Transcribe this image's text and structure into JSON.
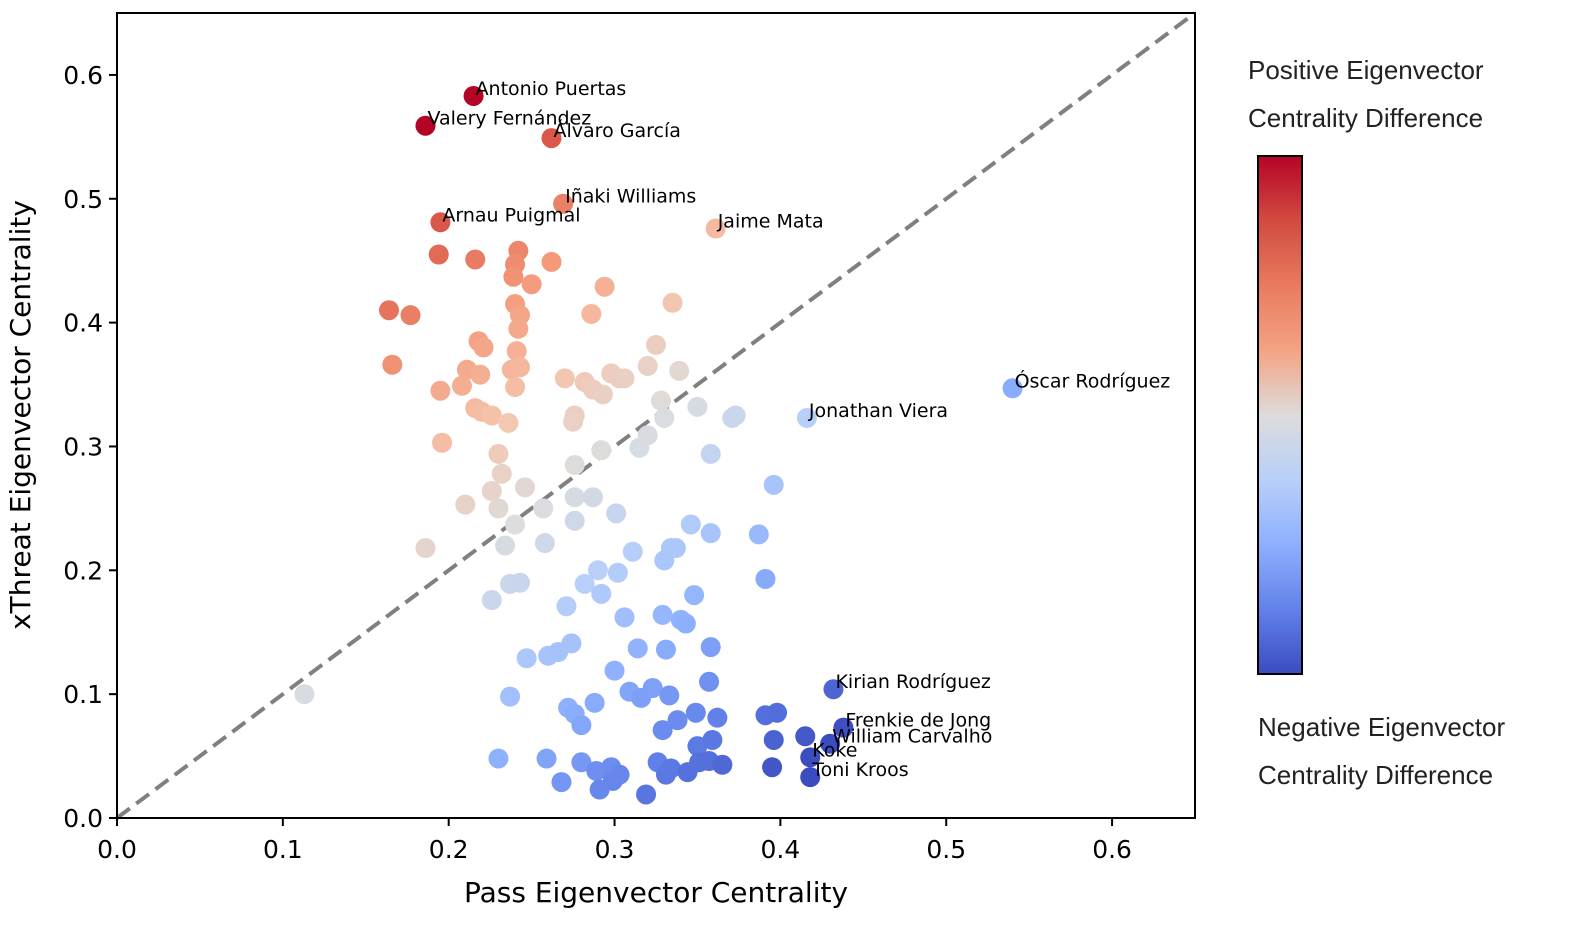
{
  "chart_data": {
    "type": "scatter",
    "xlabel": "Pass Eigenvector Centrality",
    "ylabel": "xThreat Eigenvector Centrality",
    "xlim": [
      0.0,
      0.65
    ],
    "ylim": [
      0.0,
      0.65
    ],
    "xticks": [
      "0.0",
      "0.1",
      "0.2",
      "0.3",
      "0.4",
      "0.5",
      "0.6"
    ],
    "yticks": [
      "0.0",
      "0.1",
      "0.2",
      "0.3",
      "0.4",
      "0.5",
      "0.6"
    ],
    "reference_line": "y = x, dashed gray",
    "colormap": "coolwarm",
    "colorbar": {
      "top_label": [
        "Positive Eigenvector",
        "Centrality Difference"
      ],
      "bottom_label": [
        "Negative Eigenvector",
        "Centrality Difference"
      ]
    },
    "labeled_points": [
      {
        "name": "Antonio Puertas",
        "x": 0.215,
        "y": 0.583
      },
      {
        "name": "Valery Fernández",
        "x": 0.186,
        "y": 0.559
      },
      {
        "name": "Álvaro García",
        "x": 0.262,
        "y": 0.549
      },
      {
        "name": "Iñaki Williams",
        "x": 0.269,
        "y": 0.496
      },
      {
        "name": "Arnau Puigmal",
        "x": 0.195,
        "y": 0.481
      },
      {
        "name": "Jaime Mata",
        "x": 0.361,
        "y": 0.476
      },
      {
        "name": "Óscar Rodríguez",
        "x": 0.54,
        "y": 0.347
      },
      {
        "name": "Jonathan Viera",
        "x": 0.416,
        "y": 0.323
      },
      {
        "name": "Kirian Rodríguez",
        "x": 0.432,
        "y": 0.104
      },
      {
        "name": "Frenkie de Jong",
        "x": 0.438,
        "y": 0.073
      },
      {
        "name": "William Carvalho",
        "x": 0.43,
        "y": 0.06
      },
      {
        "name": "Koke",
        "x": 0.418,
        "y": 0.049
      },
      {
        "name": "Toni Kroos",
        "x": 0.418,
        "y": 0.033
      }
    ],
    "points": [
      [
        0.113,
        0.1
      ],
      [
        0.164,
        0.41
      ],
      [
        0.177,
        0.406
      ],
      [
        0.166,
        0.366
      ],
      [
        0.194,
        0.455
      ],
      [
        0.216,
        0.451
      ],
      [
        0.242,
        0.458
      ],
      [
        0.24,
        0.447
      ],
      [
        0.239,
        0.437
      ],
      [
        0.25,
        0.431
      ],
      [
        0.262,
        0.449
      ],
      [
        0.294,
        0.429
      ],
      [
        0.335,
        0.416
      ],
      [
        0.24,
        0.415
      ],
      [
        0.243,
        0.406
      ],
      [
        0.242,
        0.395
      ],
      [
        0.218,
        0.385
      ],
      [
        0.221,
        0.38
      ],
      [
        0.241,
        0.377
      ],
      [
        0.286,
        0.407
      ],
      [
        0.325,
        0.382
      ],
      [
        0.211,
        0.362
      ],
      [
        0.219,
        0.358
      ],
      [
        0.208,
        0.349
      ],
      [
        0.195,
        0.345
      ],
      [
        0.238,
        0.362
      ],
      [
        0.243,
        0.364
      ],
      [
        0.24,
        0.348
      ],
      [
        0.27,
        0.355
      ],
      [
        0.282,
        0.352
      ],
      [
        0.287,
        0.346
      ],
      [
        0.293,
        0.342
      ],
      [
        0.298,
        0.359
      ],
      [
        0.303,
        0.355
      ],
      [
        0.306,
        0.355
      ],
      [
        0.32,
        0.365
      ],
      [
        0.339,
        0.361
      ],
      [
        0.216,
        0.331
      ],
      [
        0.22,
        0.328
      ],
      [
        0.226,
        0.325
      ],
      [
        0.236,
        0.319
      ],
      [
        0.196,
        0.303
      ],
      [
        0.276,
        0.325
      ],
      [
        0.275,
        0.32
      ],
      [
        0.328,
        0.337
      ],
      [
        0.33,
        0.323
      ],
      [
        0.35,
        0.332
      ],
      [
        0.371,
        0.323
      ],
      [
        0.373,
        0.325
      ],
      [
        0.23,
        0.294
      ],
      [
        0.232,
        0.278
      ],
      [
        0.226,
        0.264
      ],
      [
        0.21,
        0.253
      ],
      [
        0.246,
        0.267
      ],
      [
        0.23,
        0.25
      ],
      [
        0.276,
        0.285
      ],
      [
        0.292,
        0.297
      ],
      [
        0.32,
        0.309
      ],
      [
        0.315,
        0.299
      ],
      [
        0.358,
        0.294
      ],
      [
        0.186,
        0.218
      ],
      [
        0.24,
        0.237
      ],
      [
        0.234,
        0.22
      ],
      [
        0.257,
        0.25
      ],
      [
        0.258,
        0.222
      ],
      [
        0.276,
        0.259
      ],
      [
        0.287,
        0.259
      ],
      [
        0.276,
        0.24
      ],
      [
        0.301,
        0.246
      ],
      [
        0.346,
        0.237
      ],
      [
        0.358,
        0.23
      ],
      [
        0.396,
        0.269
      ],
      [
        0.226,
        0.176
      ],
      [
        0.237,
        0.189
      ],
      [
        0.243,
        0.19
      ],
      [
        0.271,
        0.171
      ],
      [
        0.282,
        0.189
      ],
      [
        0.29,
        0.2
      ],
      [
        0.292,
        0.181
      ],
      [
        0.302,
        0.198
      ],
      [
        0.311,
        0.215
      ],
      [
        0.334,
        0.218
      ],
      [
        0.337,
        0.218
      ],
      [
        0.33,
        0.208
      ],
      [
        0.387,
        0.229
      ],
      [
        0.391,
        0.193
      ],
      [
        0.306,
        0.162
      ],
      [
        0.329,
        0.164
      ],
      [
        0.34,
        0.16
      ],
      [
        0.343,
        0.157
      ],
      [
        0.348,
        0.18
      ],
      [
        0.247,
        0.129
      ],
      [
        0.26,
        0.131
      ],
      [
        0.266,
        0.134
      ],
      [
        0.274,
        0.141
      ],
      [
        0.314,
        0.137
      ],
      [
        0.331,
        0.136
      ],
      [
        0.358,
        0.138
      ],
      [
        0.237,
        0.098
      ],
      [
        0.272,
        0.089
      ],
      [
        0.276,
        0.084
      ],
      [
        0.28,
        0.075
      ],
      [
        0.288,
        0.093
      ],
      [
        0.3,
        0.119
      ],
      [
        0.309,
        0.102
      ],
      [
        0.316,
        0.097
      ],
      [
        0.323,
        0.105
      ],
      [
        0.333,
        0.099
      ],
      [
        0.329,
        0.071
      ],
      [
        0.338,
        0.079
      ],
      [
        0.349,
        0.085
      ],
      [
        0.357,
        0.11
      ],
      [
        0.362,
        0.081
      ],
      [
        0.391,
        0.083
      ],
      [
        0.398,
        0.085
      ],
      [
        0.396,
        0.063
      ],
      [
        0.415,
        0.066
      ],
      [
        0.23,
        0.048
      ],
      [
        0.259,
        0.048
      ],
      [
        0.268,
        0.029
      ],
      [
        0.28,
        0.045
      ],
      [
        0.289,
        0.038
      ],
      [
        0.291,
        0.023
      ],
      [
        0.298,
        0.041
      ],
      [
        0.299,
        0.03
      ],
      [
        0.303,
        0.035
      ],
      [
        0.319,
        0.019
      ],
      [
        0.326,
        0.045
      ],
      [
        0.331,
        0.035
      ],
      [
        0.334,
        0.04
      ],
      [
        0.344,
        0.037
      ],
      [
        0.35,
        0.058
      ],
      [
        0.351,
        0.045
      ],
      [
        0.357,
        0.046
      ],
      [
        0.359,
        0.063
      ],
      [
        0.365,
        0.043
      ],
      [
        0.395,
        0.041
      ]
    ]
  }
}
